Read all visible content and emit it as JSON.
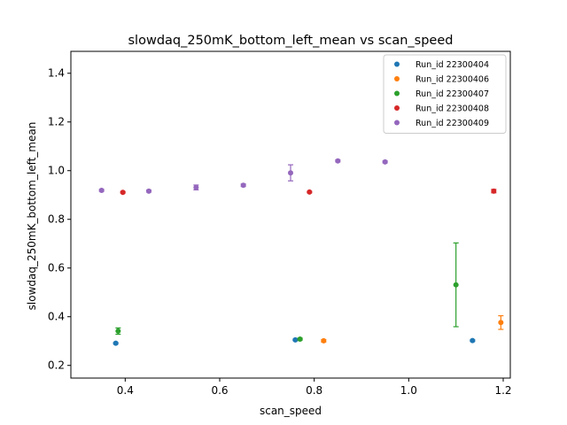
{
  "chart_data": {
    "type": "scatter",
    "title": "slowdaq_250mK_bottom_left_mean vs scan_speed",
    "xlabel": "scan_speed",
    "ylabel": "slowdaq_250mK_bottom_left_mean",
    "xlim": [
      0.285,
      1.215
    ],
    "ylim": [
      0.148,
      1.49
    ],
    "xticks": [
      0.4,
      0.6,
      0.8,
      1.0,
      1.2
    ],
    "xtick_labels": [
      "0.4",
      "0.6",
      "0.8",
      "1.0",
      "1.2"
    ],
    "yticks": [
      0.2,
      0.4,
      0.6,
      0.8,
      1.0,
      1.2,
      1.4
    ],
    "ytick_labels": [
      "0.2",
      "0.4",
      "0.6",
      "0.8",
      "1.0",
      "1.2",
      "1.4"
    ],
    "grid": false,
    "legend_position": "top-right",
    "series": [
      {
        "name": "Run_id 22300404",
        "color": "#1f77b4",
        "points": [
          {
            "x": 0.38,
            "y": 0.291,
            "err": 0.003
          },
          {
            "x": 0.76,
            "y": 0.305,
            "err": 0.003
          },
          {
            "x": 1.135,
            "y": 0.302,
            "err": 0.003
          }
        ]
      },
      {
        "name": "Run_id 22300406",
        "color": "#ff7f0e",
        "points": [
          {
            "x": 0.82,
            "y": 0.301,
            "err": 0.005
          },
          {
            "x": 1.195,
            "y": 0.376,
            "err": 0.028
          }
        ]
      },
      {
        "name": "Run_id 22300407",
        "color": "#2ca02c",
        "points": [
          {
            "x": 0.385,
            "y": 0.341,
            "err": 0.013
          },
          {
            "x": 0.77,
            "y": 0.308,
            "err": 0.004
          },
          {
            "x": 1.1,
            "y": 0.531,
            "err": 0.172
          }
        ]
      },
      {
        "name": "Run_id 22300408",
        "color": "#d62728",
        "points": [
          {
            "x": 0.395,
            "y": 0.911,
            "err": 0.003
          },
          {
            "x": 0.79,
            "y": 0.912,
            "err": 0.003
          },
          {
            "x": 1.18,
            "y": 0.916,
            "err": 0.007
          }
        ]
      },
      {
        "name": "Run_id 22300409",
        "color": "#9467bd",
        "points": [
          {
            "x": 0.35,
            "y": 0.919,
            "err": 0.004
          },
          {
            "x": 0.45,
            "y": 0.916,
            "err": 0.004
          },
          {
            "x": 0.55,
            "y": 0.931,
            "err": 0.01
          },
          {
            "x": 0.65,
            "y": 0.94,
            "err": 0.005
          },
          {
            "x": 0.75,
            "y": 0.991,
            "err": 0.033
          },
          {
            "x": 0.85,
            "y": 1.04,
            "err": 0.004
          },
          {
            "x": 0.95,
            "y": 1.036,
            "err": 0.004
          }
        ]
      }
    ]
  }
}
